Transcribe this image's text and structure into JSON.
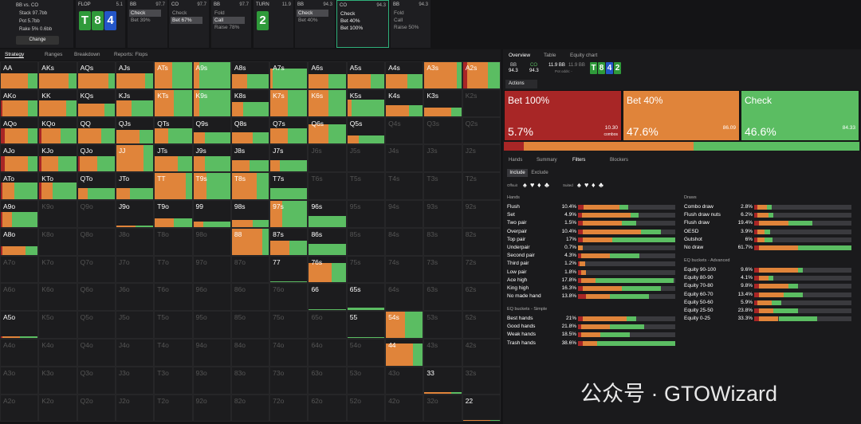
{
  "header": {
    "matchup": "BB vs. CO",
    "stack": "Stack 97.7bb",
    "pot": "Pot 5.7bb",
    "rake": "Rake 5% 0.6bb",
    "change": "Change"
  },
  "action_line": [
    {
      "label": "FLOP",
      "size": "5.1",
      "cards": [
        "T",
        "8",
        "4"
      ],
      "card_colors": [
        "#2f9a3a",
        "#2f9a3a",
        "#2456c8"
      ]
    },
    {
      "label": "BB",
      "size": "97.7",
      "options": [
        "Check",
        "Bet 39%"
      ],
      "chosen": 0
    },
    {
      "label": "CO",
      "size": "97.7",
      "options": [
        "Check",
        "Bet 67%"
      ],
      "chosen": 1
    },
    {
      "label": "BB",
      "size": "97.7",
      "options": [
        "Fold",
        "Call",
        "Raise 78%"
      ],
      "chosen": 1
    },
    {
      "label": "TURN",
      "size": "11.9",
      "cards": [
        "2"
      ],
      "card_colors": [
        "#2f9a3a"
      ]
    },
    {
      "label": "BB",
      "size": "94.3",
      "options": [
        "Check",
        "Bet 40%"
      ],
      "chosen": 0
    },
    {
      "label": "CO",
      "size": "94.3",
      "options": [
        "Check",
        "Bet 40%",
        "Bet 100%"
      ],
      "active": true
    },
    {
      "label": "BB",
      "size": "94.3",
      "options": [
        "Fold",
        "Call",
        "Raise 50%"
      ]
    }
  ],
  "left_tabs": [
    "Strategy",
    "Ranges",
    "Breakdown",
    "Reports: Flops"
  ],
  "matrix": {
    "rows": [
      [
        "AA",
        "AKs",
        "AQs",
        "AJs",
        "ATs",
        "A9s",
        "A8s",
        "A7s",
        "A6s",
        "A5s",
        "A4s",
        "A3s",
        "A2s"
      ],
      [
        "AKo",
        "KK",
        "KQs",
        "KJs",
        "KTs",
        "K9s",
        "K8s",
        "K7s",
        "K6s",
        "K5s",
        "K4s",
        "K3s",
        "K2s"
      ],
      [
        "AQo",
        "KQo",
        "QQ",
        "QJs",
        "QTs",
        "Q9s",
        "Q8s",
        "Q7s",
        "Q6s",
        "Q5s",
        "Q4s",
        "Q3s",
        "Q2s"
      ],
      [
        "AJo",
        "KJo",
        "QJo",
        "JJ",
        "JTs",
        "J9s",
        "J8s",
        "J7s",
        "J6s",
        "J5s",
        "J4s",
        "J3s",
        "J2s"
      ],
      [
        "ATo",
        "KTo",
        "QTo",
        "JTo",
        "TT",
        "T9s",
        "T8s",
        "T7s",
        "T6s",
        "T5s",
        "T4s",
        "T3s",
        "T2s"
      ],
      [
        "A9o",
        "K9o",
        "Q9o",
        "J9o",
        "T9o",
        "99",
        "98s",
        "97s",
        "96s",
        "95s",
        "94s",
        "93s",
        "92s"
      ],
      [
        "A8o",
        "K8o",
        "Q8o",
        "J8o",
        "T8o",
        "98o",
        "88",
        "87s",
        "86s",
        "85s",
        "84s",
        "83s",
        "82s"
      ],
      [
        "A7o",
        "K7o",
        "Q7o",
        "J7o",
        "T7o",
        "97o",
        "87o",
        "77",
        "76s",
        "75s",
        "74s",
        "73s",
        "72s"
      ],
      [
        "A6o",
        "K6o",
        "Q6o",
        "J6o",
        "T6o",
        "96o",
        "86o",
        "76o",
        "66",
        "65s",
        "64s",
        "63s",
        "62s"
      ],
      [
        "A5o",
        "K5o",
        "Q5o",
        "J5o",
        "T5o",
        "95o",
        "85o",
        "75o",
        "65o",
        "55",
        "54s",
        "53s",
        "52s"
      ],
      [
        "A4o",
        "K4o",
        "Q4o",
        "J4o",
        "T4o",
        "94o",
        "84o",
        "74o",
        "64o",
        "54o",
        "44",
        "43s",
        "42s"
      ],
      [
        "A3o",
        "K3o",
        "Q3o",
        "J3o",
        "T3o",
        "93o",
        "83o",
        "73o",
        "63o",
        "53o",
        "43o",
        "33",
        "32s"
      ],
      [
        "A2o",
        "K2o",
        "Q2o",
        "J2o",
        "T2o",
        "92o",
        "82o",
        "72o",
        "62o",
        "52o",
        "42o",
        "32o",
        "22"
      ]
    ],
    "mix": {
      "AA": [
        0,
        70,
        30,
        55
      ],
      "AKs": [
        0,
        75,
        25,
        55
      ],
      "AQs": [
        0,
        80,
        20,
        55
      ],
      "AJs": [
        0,
        75,
        25,
        55
      ],
      "ATs": [
        0,
        45,
        55,
        100
      ],
      "A9s": [
        0,
        15,
        85,
        100
      ],
      "A8s": [
        0,
        40,
        60,
        50
      ],
      "A7s": [
        0,
        5,
        95,
        70
      ],
      "A6s": [
        0,
        50,
        50,
        50
      ],
      "A5s": [
        0,
        60,
        40,
        50
      ],
      "A4s": [
        0,
        55,
        45,
        50
      ],
      "A3s": [
        0,
        85,
        15,
        100
      ],
      "A2s": [
        10,
        55,
        35,
        100
      ],
      "AKo": [
        5,
        65,
        30,
        55
      ],
      "KK": [
        0,
        70,
        30,
        55
      ],
      "KQs": [
        0,
        70,
        30,
        45
      ],
      "KJs": [
        0,
        40,
        60,
        55
      ],
      "KTs": [
        0,
        50,
        50,
        100
      ],
      "K9s": [
        0,
        15,
        85,
        100
      ],
      "K8s": [
        0,
        30,
        70,
        50
      ],
      "K7s": [
        0,
        45,
        55,
        100
      ],
      "K6s": [
        0,
        50,
        50,
        100
      ],
      "K5s": [
        0,
        10,
        90,
        60
      ],
      "K4s": [
        0,
        60,
        40,
        40
      ],
      "K3s": [
        0,
        70,
        30,
        30
      ],
      "AQo": [
        10,
        60,
        30,
        55
      ],
      "KQo": [
        5,
        50,
        45,
        55
      ],
      "QQ": [
        0,
        60,
        40,
        55
      ],
      "QJs": [
        0,
        60,
        40,
        50
      ],
      "QTs": [
        0,
        35,
        65,
        55
      ],
      "Q9s": [
        0,
        30,
        70,
        40
      ],
      "Q8s": [
        0,
        55,
        45,
        40
      ],
      "Q7s": [
        0,
        45,
        55,
        55
      ],
      "Q6s": [
        0,
        50,
        50,
        70
      ],
      "Q5s": [
        0,
        30,
        70,
        30
      ],
      "AJo": [
        10,
        60,
        30,
        55
      ],
      "KJo": [
        5,
        45,
        50,
        55
      ],
      "QJo": [
        5,
        45,
        50,
        55
      ],
      "JJ": [
        0,
        70,
        30,
        100
      ],
      "JTs": [
        0,
        60,
        40,
        55
      ],
      "J9s": [
        0,
        30,
        70,
        55
      ],
      "J8s": [
        0,
        45,
        55,
        40
      ],
      "J7s": [
        0,
        25,
        75,
        40
      ],
      "ATo": [
        5,
        30,
        65,
        60
      ],
      "KTo": [
        5,
        30,
        65,
        60
      ],
      "QTo": [
        0,
        25,
        75,
        40
      ],
      "JTo": [
        0,
        35,
        65,
        40
      ],
      "TT": [
        0,
        80,
        20,
        100
      ],
      "T9s": [
        0,
        35,
        65,
        100
      ],
      "T8s": [
        0,
        65,
        35,
        100
      ],
      "T7s": [
        0,
        0,
        100,
        40
      ],
      "A9o": [
        5,
        25,
        70,
        55
      ],
      "J9o": [
        0,
        50,
        50,
        5
      ],
      "T9o": [
        0,
        50,
        50,
        30
      ],
      "99": [
        0,
        25,
        75,
        20
      ],
      "98s": [
        0,
        55,
        45,
        25
      ],
      "97s": [
        0,
        30,
        70,
        100
      ],
      "96s": [
        0,
        0,
        100,
        40
      ],
      "A8o": [
        5,
        60,
        35,
        30
      ],
      "88": [
        0,
        80,
        20,
        100
      ],
      "87s": [
        0,
        50,
        50,
        50
      ],
      "86s": [
        0,
        0,
        100,
        40
      ],
      "77": [
        0,
        0,
        100,
        3
      ],
      "76s": [
        0,
        60,
        40,
        70
      ],
      "66": [
        0,
        0,
        100,
        3
      ],
      "65s": [
        0,
        0,
        100,
        10
      ],
      "A5o": [
        5,
        45,
        50,
        5
      ],
      "55": [
        0,
        0,
        100,
        3
      ],
      "54s": [
        0,
        50,
        50,
        100
      ],
      "44": [
        0,
        70,
        30,
        80
      ],
      "33": [
        0,
        70,
        30,
        5
      ],
      "22": [
        0,
        70,
        30,
        5
      ]
    }
  },
  "right_tabs": [
    "Overview",
    "Table",
    "Equity chart"
  ],
  "info": {
    "p1": "BB",
    "p1_stack": "94.3",
    "p2": "CO",
    "p2_stack": "94.3",
    "pot": "11.9 BB",
    "pot2": "11.9 BB",
    "pot_odds": "Pot odds: -",
    "board": [
      "T",
      "8",
      "4",
      "2"
    ],
    "board_colors": [
      "#2f9a3a",
      "#2f9a3a",
      "#2456c8",
      "#2f9a3a"
    ]
  },
  "actions_label": "Actions",
  "actions": [
    {
      "name": "Bet 100%",
      "pct": 5.7,
      "pct_label": "5.7%",
      "combos": "10.30",
      "color": "#a82626"
    },
    {
      "name": "Bet 40%",
      "pct": 47.6,
      "pct_label": "47.6%",
      "combos": "86.09",
      "color": "#e0843a"
    },
    {
      "name": "Check",
      "pct": 46.6,
      "pct_label": "46.6%",
      "combos": "84.33",
      "color": "#5bbd62"
    }
  ],
  "combos_word": "combos",
  "sub_tabs": [
    "Hands",
    "Summary",
    "Filters",
    "Blockers"
  ],
  "include": [
    "Include",
    "Exclude"
  ],
  "offsuit": "Offsuit",
  "suited": "Suited",
  "suits": [
    "♠",
    "♥",
    "♦",
    "♣"
  ],
  "filter_groups": [
    {
      "title": "Hands",
      "rows": [
        {
          "name": "Flush",
          "pct": "10.4%",
          "mix": [
            6,
            37,
            9
          ]
        },
        {
          "name": "Set",
          "pct": "4.9%",
          "mix": [
            4,
            50,
            8
          ]
        },
        {
          "name": "Two pair",
          "pct": "1.5%",
          "mix": [
            5,
            40,
            15
          ]
        },
        {
          "name": "Overpair",
          "pct": "10.4%",
          "mix": [
            5,
            60,
            20
          ]
        },
        {
          "name": "Top pair",
          "pct": "17%",
          "mix": [
            5,
            30,
            65
          ]
        },
        {
          "name": "Underpair",
          "pct": "0.7%",
          "mix": [
            0,
            5,
            0
          ]
        },
        {
          "name": "Second pair",
          "pct": "4.3%",
          "mix": [
            3,
            30,
            30
          ]
        },
        {
          "name": "Third pair",
          "pct": "1.2%",
          "mix": [
            2,
            5,
            0
          ]
        },
        {
          "name": "Low pair",
          "pct": "1.8%",
          "mix": [
            3,
            5,
            0
          ]
        },
        {
          "name": "Ace high",
          "pct": "17.8%",
          "mix": [
            3,
            15,
            80
          ]
        },
        {
          "name": "King high",
          "pct": "16.3%",
          "mix": [
            5,
            40,
            40
          ]
        },
        {
          "name": "No made hand",
          "pct": "13.8%",
          "mix": [
            8,
            25,
            40
          ]
        }
      ]
    },
    {
      "title": "EQ buckets - Simple",
      "rows": [
        {
          "name": "Best hands",
          "pct": "21%",
          "mix": [
            5,
            45,
            10
          ]
        },
        {
          "name": "Good hands",
          "pct": "21.8%",
          "mix": [
            3,
            30,
            35
          ]
        },
        {
          "name": "Weak hands",
          "pct": "18.5%",
          "mix": [
            3,
            20,
            30
          ]
        },
        {
          "name": "Trash hands",
          "pct": "38.6%",
          "mix": [
            5,
            15,
            80
          ]
        }
      ]
    },
    {
      "title": "Draws",
      "rows": [
        {
          "name": "Combo draw",
          "pct": "2.8%",
          "mix": [
            3,
            10,
            5
          ]
        },
        {
          "name": "Flush draw nuts",
          "pct": "6.2%",
          "mix": [
            3,
            12,
            5
          ]
        },
        {
          "name": "Flush draw",
          "pct": "19.4%",
          "mix": [
            5,
            30,
            25
          ]
        },
        {
          "name": "OESD",
          "pct": "3.9%",
          "mix": [
            3,
            8,
            5
          ]
        },
        {
          "name": "Gutshot",
          "pct": "6%",
          "mix": [
            3,
            8,
            8
          ]
        },
        {
          "name": "No draw",
          "pct": "61.7%",
          "mix": [
            5,
            40,
            55
          ]
        }
      ]
    },
    {
      "title": "EQ buckets - Advanced",
      "rows": [
        {
          "name": "Equity 90-100",
          "pct": "9.6%",
          "mix": [
            5,
            40,
            5
          ]
        },
        {
          "name": "Equity 80-90",
          "pct": "4.1%",
          "mix": [
            5,
            10,
            5
          ]
        },
        {
          "name": "Equity 70-80",
          "pct": "9.8%",
          "mix": [
            5,
            30,
            10
          ]
        },
        {
          "name": "Equity 60-70",
          "pct": "13.4%",
          "mix": [
            5,
            25,
            20
          ]
        },
        {
          "name": "Equity 50-60",
          "pct": "5.9%",
          "mix": [
            3,
            15,
            10
          ]
        },
        {
          "name": "Equity 25-50",
          "pct": "23.8%",
          "mix": [
            5,
            15,
            25
          ]
        },
        {
          "name": "Equity 0-25",
          "pct": "33.3%",
          "mix": [
            5,
            20,
            40
          ]
        }
      ]
    }
  ],
  "watermark": "公众号 · GTOWizard"
}
